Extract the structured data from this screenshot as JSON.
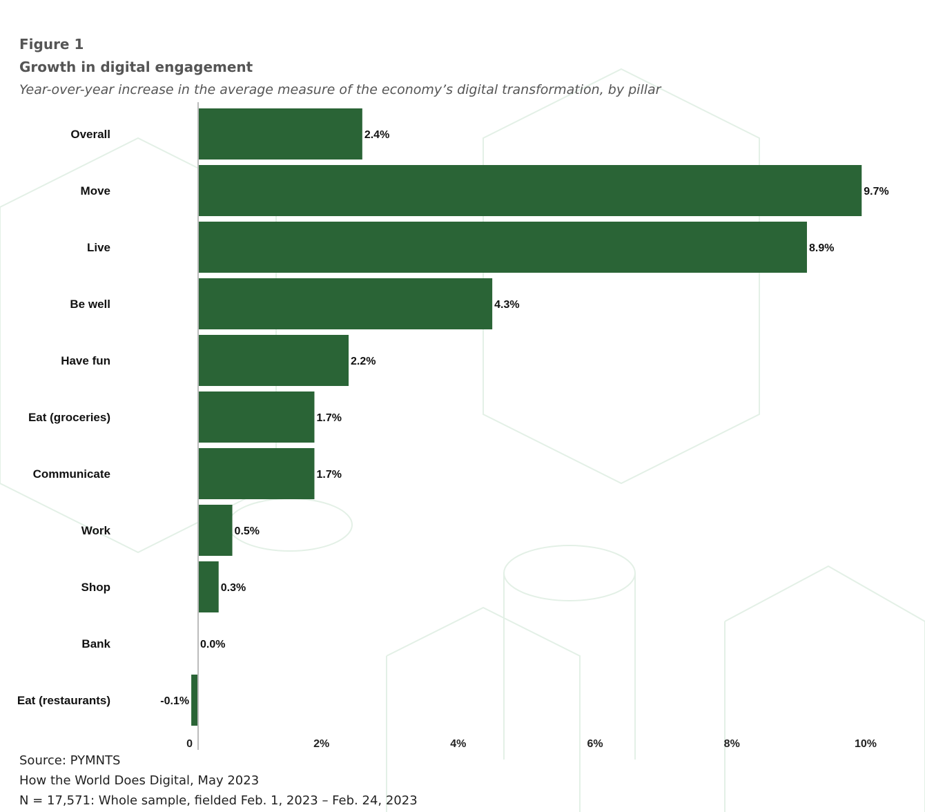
{
  "header": {
    "figure_label": "Figure 1",
    "title": "Growth in digital engagement",
    "subtitle": "Year-over-year increase in the average measure of the economy’s digital transformation, by pillar"
  },
  "footer": {
    "source": "Source: PYMNTS",
    "report": "How the World Does Digital, May 2023",
    "sample": "N = 17,571: Whole sample, fielded Feb. 1, 2023 – Feb. 24, 2023"
  },
  "chart_data": {
    "type": "bar",
    "orientation": "horizontal",
    "categories": [
      "Overall",
      "Move",
      "Live",
      "Be well",
      "Have fun",
      "Eat (groceries)",
      "Communicate",
      "Work",
      "Shop",
      "Bank",
      "Eat (restaurants)"
    ],
    "values": [
      2.4,
      9.7,
      8.9,
      4.3,
      2.2,
      1.7,
      1.7,
      0.5,
      0.3,
      0.0,
      -0.1
    ],
    "value_labels": [
      "2.4%",
      "9.7%",
      "8.9%",
      "4.3%",
      "2.2%",
      "1.7%",
      "1.7%",
      "0.5%",
      "0.3%",
      "0.0%",
      "-0.1%"
    ],
    "xlim": [
      0,
      10
    ],
    "x_ticks": [
      0,
      2,
      4,
      6,
      8,
      10
    ],
    "x_tick_labels": [
      "0",
      "2%",
      "4%",
      "6%",
      "8%",
      "10%"
    ],
    "grid": false,
    "bar_color": "#2a6436"
  }
}
